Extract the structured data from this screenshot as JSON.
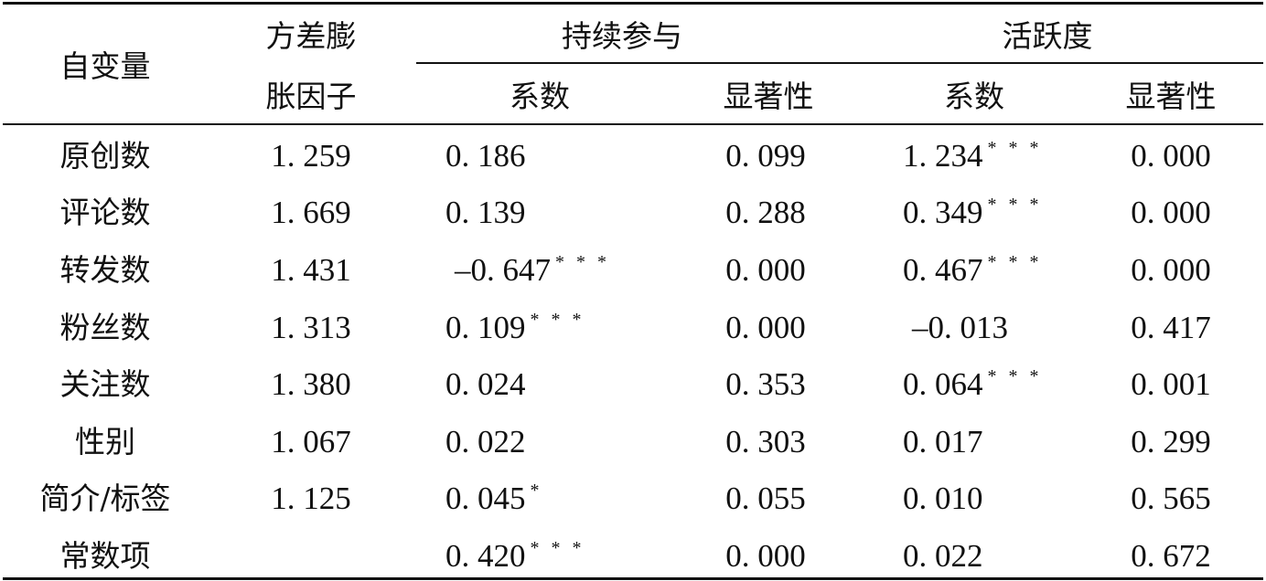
{
  "header": {
    "var_label": "自变量",
    "vif_line1": "方差膨",
    "vif_line2": "胀因子",
    "group1": "持续参与",
    "group2": "活跃度",
    "coef1": "系数",
    "sig1": "显著性",
    "coef2": "系数",
    "sig2": "显著性"
  },
  "rows": [
    {
      "var": "原创数",
      "vif": "1. 259",
      "c1": "0. 186",
      "s1star": "",
      "p1": "0. 099",
      "c2": "1. 234",
      "s2star": "* * *",
      "p2": "0. 000"
    },
    {
      "var": "评论数",
      "vif": "1. 669",
      "c1": "0. 139",
      "s1star": "",
      "p1": "0. 288",
      "c2": "0. 349",
      "s2star": "* * *",
      "p2": "0. 000"
    },
    {
      "var": "转发数",
      "vif": "1. 431",
      "c1": "–0. 647",
      "s1star": "* * *",
      "p1": "0. 000",
      "c2": "0. 467",
      "s2star": "* * *",
      "p2": "0. 000"
    },
    {
      "var": "粉丝数",
      "vif": "1. 313",
      "c1": "0. 109",
      "s1star": "* * *",
      "p1": "0. 000",
      "c2": "–0. 013",
      "s2star": "",
      "p2": "0. 417"
    },
    {
      "var": "关注数",
      "vif": "1. 380",
      "c1": "0. 024",
      "s1star": "",
      "p1": "0. 353",
      "c2": "0. 064",
      "s2star": "* * *",
      "p2": "0. 001"
    },
    {
      "var": "性别",
      "vif": "1. 067",
      "c1": "0. 022",
      "s1star": "",
      "p1": "0. 303",
      "c2": "0. 017",
      "s2star": "",
      "p2": "0. 299"
    },
    {
      "var": "简介/标签",
      "vif": "1. 125",
      "c1": "0. 045",
      "s1star": "*",
      "p1": "0. 055",
      "c2": "0. 010",
      "s2star": "",
      "p2": "0. 565"
    },
    {
      "var": "常数项",
      "vif": "",
      "c1": "0. 420",
      "s1star": "* * *",
      "p1": "0. 000",
      "c2": "0. 022",
      "s2star": "",
      "p2": "0. 672"
    }
  ]
}
